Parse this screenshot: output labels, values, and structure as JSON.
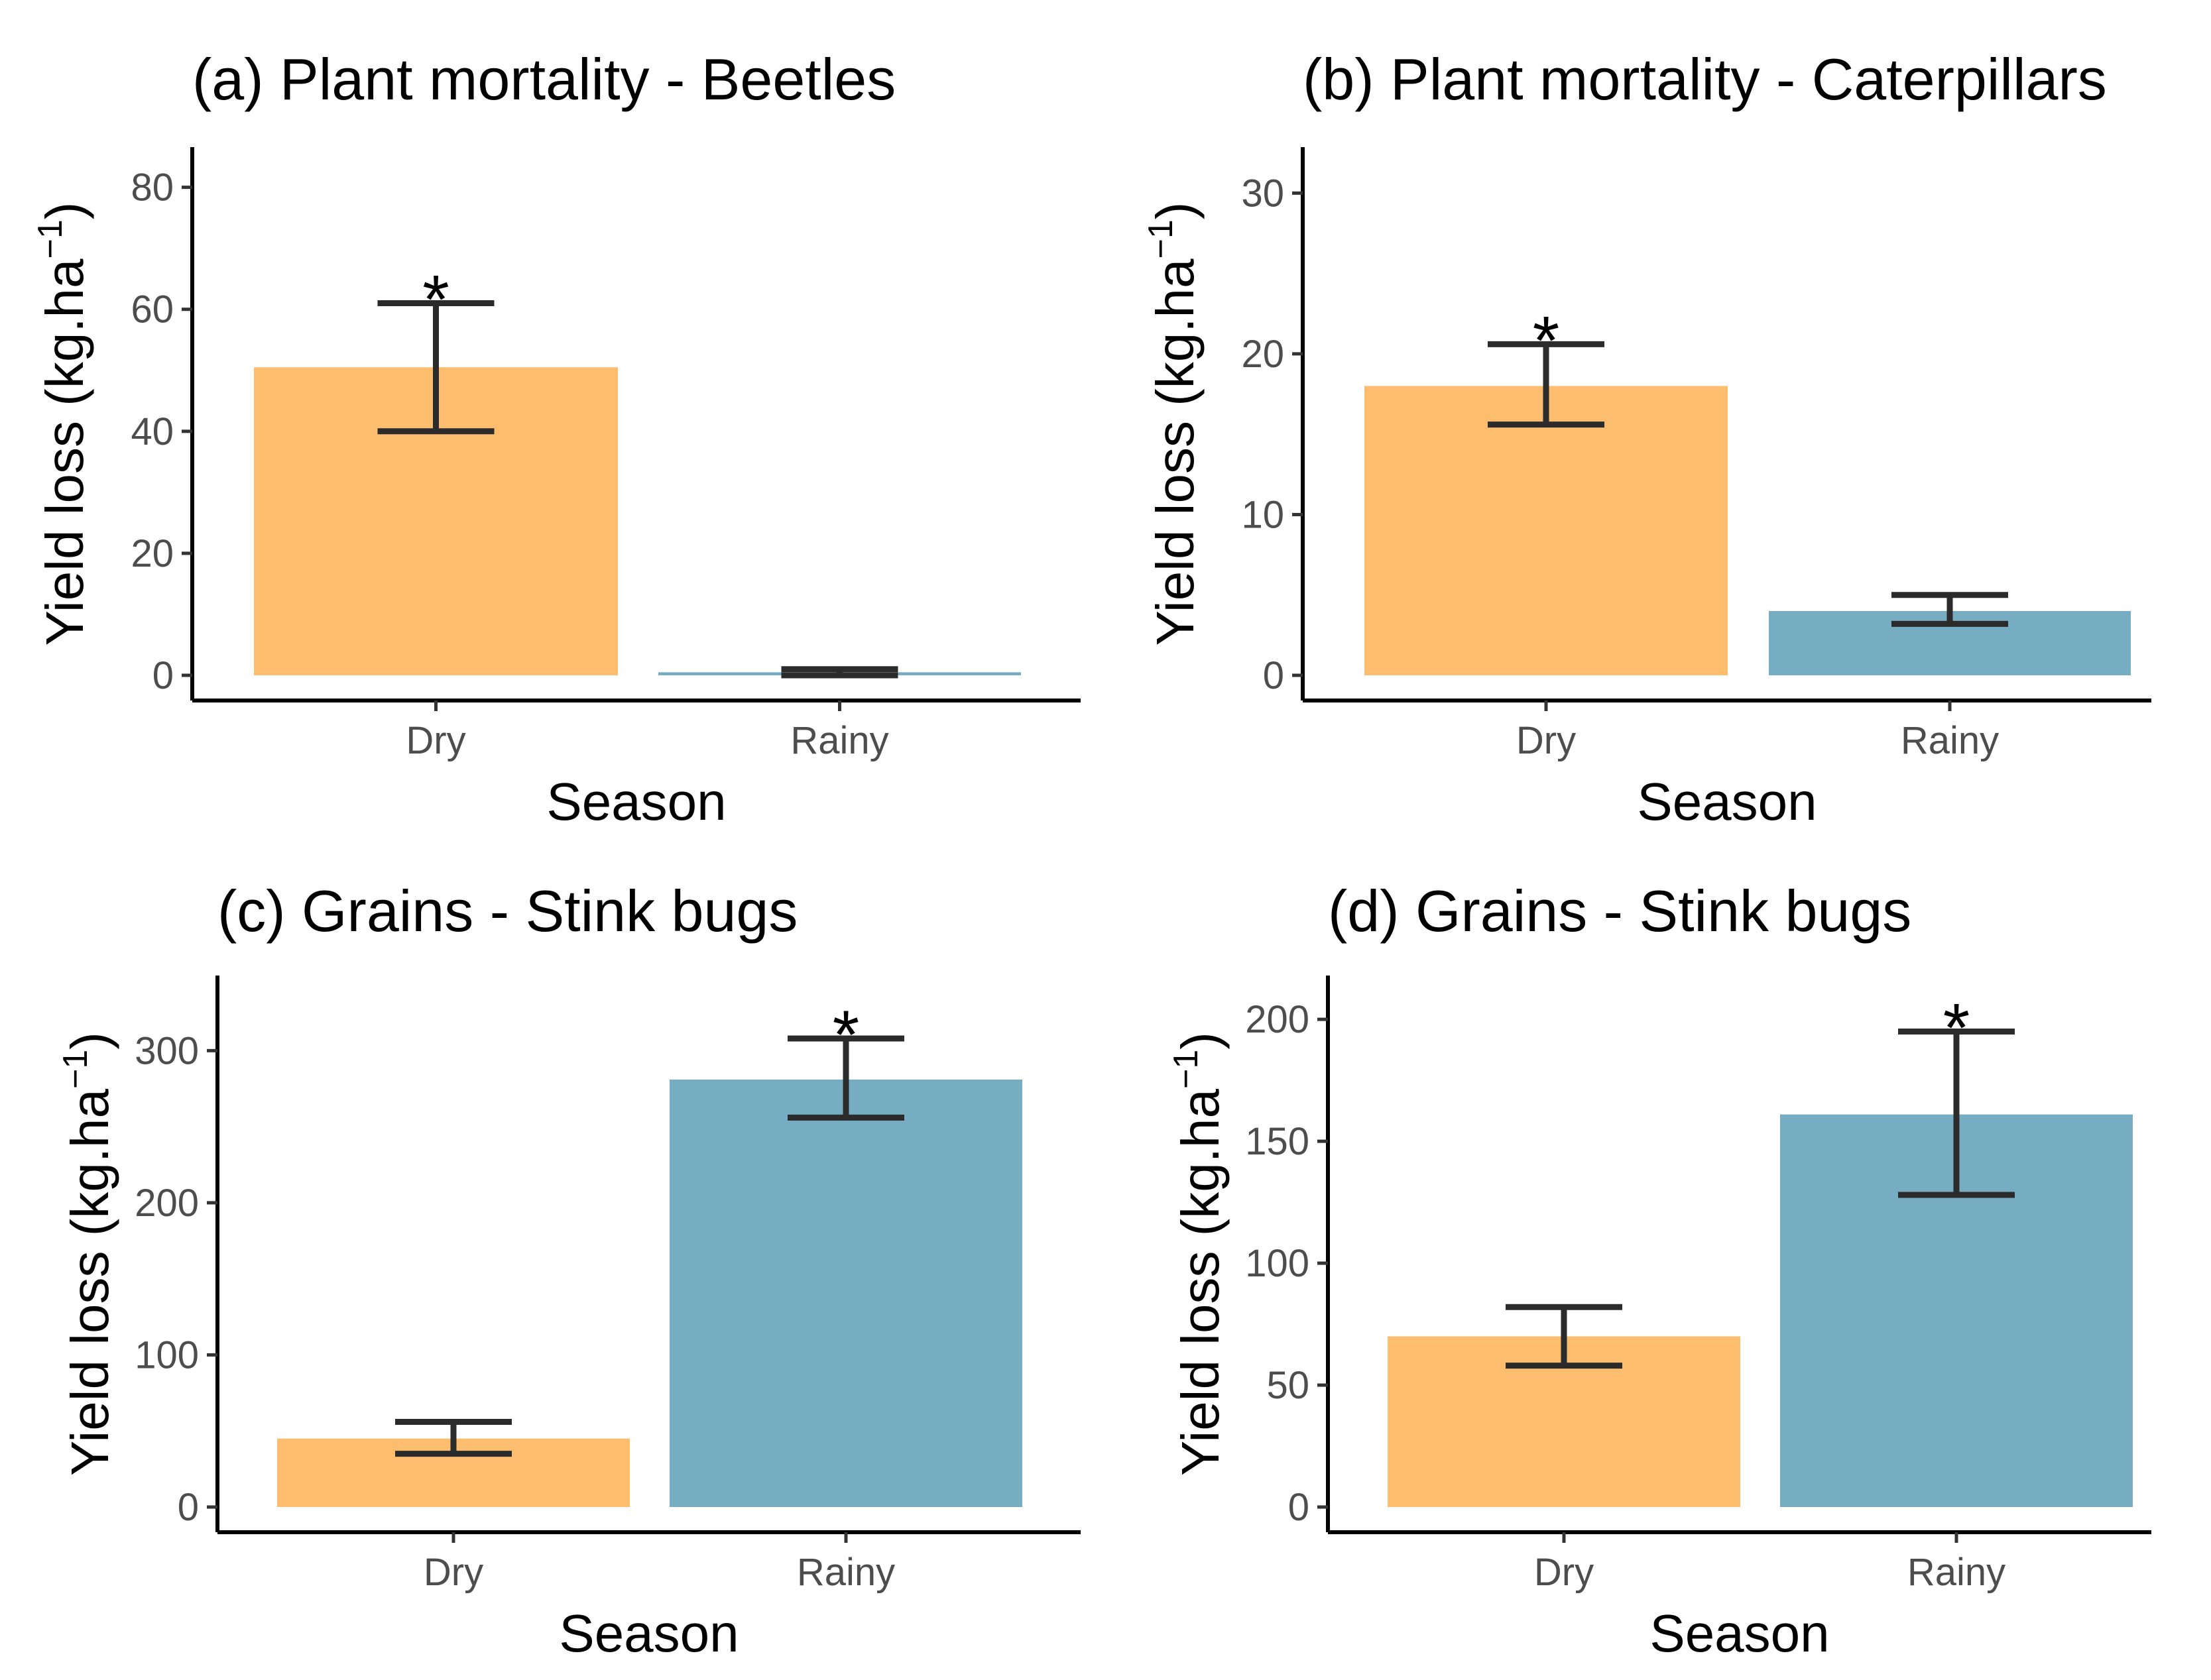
{
  "colors": {
    "dry": "#fdbd6e",
    "rainy": "#77adc2",
    "error": "#2b2b2b"
  },
  "chart_data": [
    {
      "type": "bar",
      "panel": "a",
      "title": "(a) Plant mortality - Beetles",
      "xlabel": "Season",
      "ylabel_main": "Yield loss (kg.ha",
      "ylabel_sup": "−1",
      "ylabel_close": ")",
      "categories": [
        "Dry",
        "Rainy"
      ],
      "values": [
        50.5,
        0.5
      ],
      "err_low": [
        40,
        0
      ],
      "err_high": [
        61,
        1
      ],
      "significant": [
        "*",
        ""
      ],
      "ylim": [
        0,
        83
      ],
      "yticks": [
        0,
        20,
        40,
        60,
        80
      ],
      "ytick_labels": [
        "0",
        "20",
        "40",
        "60",
        "80"
      ]
    },
    {
      "type": "bar",
      "panel": "b",
      "title": "(b) Plant mortality - Caterpillars",
      "xlabel": "Season",
      "ylabel_main": "Yield loss (kg.ha",
      "ylabel_sup": "−1",
      "ylabel_close": ")",
      "categories": [
        "Dry",
        "Rainy"
      ],
      "values": [
        18,
        4
      ],
      "err_low": [
        15.6,
        3.2
      ],
      "err_high": [
        20.6,
        5
      ],
      "significant": [
        "*",
        ""
      ],
      "ylim": [
        0,
        31.5
      ],
      "yticks": [
        0,
        10,
        20,
        30
      ],
      "ytick_labels": [
        "0",
        "10",
        "20",
        "30"
      ]
    },
    {
      "type": "bar",
      "panel": "c",
      "title": "(c) Grains - Stink bugs",
      "xlabel": "Season",
      "ylabel_main": "Yield loss (kg.ha",
      "ylabel_sup": "−1",
      "ylabel_close": ")",
      "categories": [
        "Dry",
        "Rainy"
      ],
      "values": [
        45,
        281
      ],
      "err_low": [
        35,
        256
      ],
      "err_high": [
        56,
        308
      ],
      "significant": [
        "",
        "*"
      ],
      "ylim": [
        0,
        335
      ],
      "yticks": [
        0,
        100,
        200,
        300
      ],
      "ytick_labels": [
        "0",
        "100",
        "200",
        "300"
      ]
    },
    {
      "type": "bar",
      "panel": "d",
      "title": "(d) Grains - Stink bugs",
      "xlabel": "Season",
      "ylabel_main": "Yield loss (kg.ha",
      "ylabel_sup": "−1",
      "ylabel_close": ")",
      "categories": [
        "Dry",
        "Rainy"
      ],
      "values": [
        70,
        161
      ],
      "err_low": [
        58,
        128
      ],
      "err_high": [
        82,
        195
      ],
      "significant": [
        "",
        "*"
      ],
      "ylim": [
        0,
        209
      ],
      "yticks": [
        0,
        50,
        100,
        150,
        200
      ],
      "ytick_labels": [
        "0",
        "50",
        "100",
        "150",
        "200"
      ]
    }
  ]
}
